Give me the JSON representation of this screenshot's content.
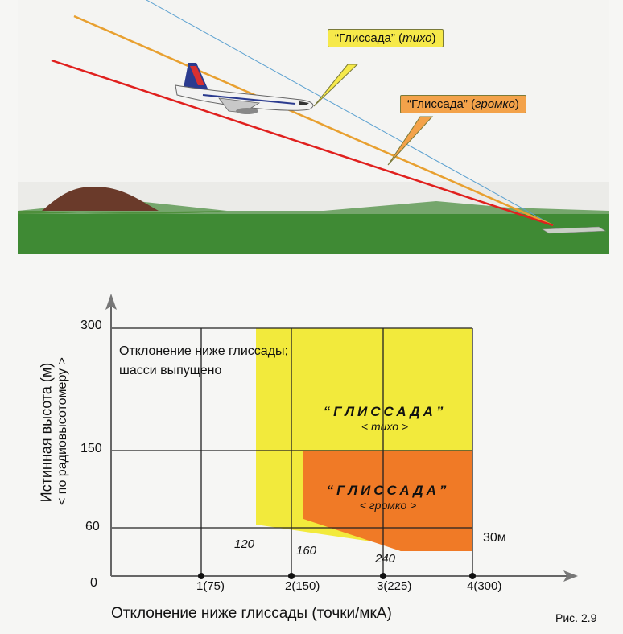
{
  "scene": {
    "callout_quiet": {
      "prefix": "“Глиссада” (",
      "word": "тихо",
      "suffix": ")"
    },
    "callout_loud": {
      "prefix": "“Глиссада” (",
      "word": "громко",
      "suffix": ")"
    },
    "colors": {
      "sky": "#f4f4f2",
      "ground": "#3f8a34",
      "hill": "#6a3a2a",
      "red_line": "#e0201e",
      "orange_line": "#e8a030",
      "blue_line": "#5aa0d0"
    }
  },
  "graph": {
    "y_axis_title": "Истинная высота  (м)",
    "y_axis_subtitle": "< по радиовысотомеру >",
    "x_axis_title": "Отклонение ниже глиссады (точки/мкА)",
    "y_ticks": [
      "300",
      "150",
      "60",
      "0"
    ],
    "x_points": [
      "1(75)",
      "2(150)",
      "3(225)",
      "4(300)"
    ],
    "inside_label_line1": "Отклонение ниже глиссады;",
    "inside_label_line2": "шасси выпущено",
    "boundary_labels": [
      "120",
      "160",
      "240"
    ],
    "label_30m": "30м",
    "zone_quiet": {
      "title": "“ГЛИССАДА”",
      "sub": "< тихо >",
      "color": "#f2ea3c"
    },
    "zone_loud": {
      "title": "“ГЛИССАДА”",
      "sub": "< громко >",
      "color": "#f07a26"
    },
    "figure_caption": "Рис. 2.9"
  }
}
